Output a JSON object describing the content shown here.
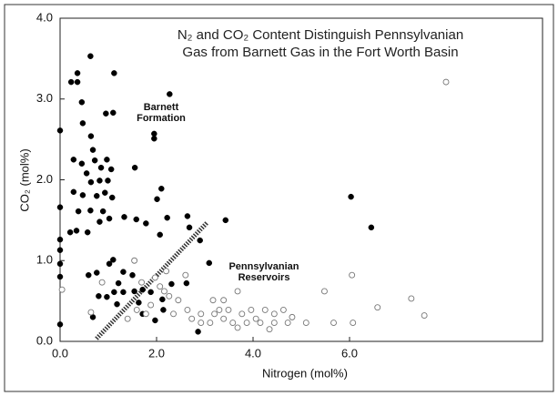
{
  "chart_data": {
    "type": "scatter",
    "title": [
      "N₂ and CO₂ Content Distinguish Pennsylvanian",
      "Gas from Barnett Gas in the Fort Worth Basin"
    ],
    "x_label": "Nitrogen (mol%)",
    "y_label": "CO₂ (mol%)",
    "annotations": [
      "Barnett",
      "Formation",
      "Pennsylvanian",
      "Reservoirs"
    ],
    "xlim": [
      0,
      10
    ],
    "ylim": [
      0,
      4
    ],
    "xticks": [
      {
        "value": 0,
        "label": "0.0"
      },
      {
        "value": 2,
        "label": "2.0"
      },
      {
        "value": 4,
        "label": "4.0"
      },
      {
        "value": 6,
        "label": "6.0"
      }
    ],
    "yticks": [
      {
        "value": 0,
        "label": "0.0"
      },
      {
        "value": 1,
        "label": "1.0"
      },
      {
        "value": 2,
        "label": "2.0"
      },
      {
        "value": 3,
        "label": "3.0"
      },
      {
        "value": 4,
        "label": "4.0"
      }
    ],
    "series": [
      {
        "color": "#000000",
        "marker": "filled",
        "x": [
          0,
          0,
          0,
          0,
          0,
          0,
          0,
          0.23,
          0.36,
          0.36,
          0.63,
          1.12,
          0.45,
          0.47,
          0.95,
          1.1,
          2.27,
          1.95,
          1.95,
          0.28,
          0.45,
          0.64,
          0.68,
          0.72,
          0.85,
          0.97,
          1.06,
          1.55,
          0.55,
          0.64,
          0.82,
          0.99,
          0.28,
          0.47,
          0.76,
          0.93,
          1.08,
          2.1,
          2.01,
          0.38,
          0.63,
          0.89,
          1.02,
          1.33,
          1.58,
          1.78,
          0.21,
          0.34,
          0.57,
          0.82,
          2.07,
          2.22,
          3.43,
          2.64,
          2.68,
          2.9,
          3.09,
          6.03,
          6.45,
          0.59,
          0.76,
          1.02,
          1.1,
          1.31,
          0.8,
          0.97,
          1.12,
          1.21,
          1.31,
          1.54,
          1.71,
          1.88,
          0.68,
          1.18,
          1.71,
          1.97,
          2.14,
          2.12,
          2.86,
          2.62,
          2.31,
          1.63,
          1.5
        ],
        "y": [
          2.61,
          1.66,
          1.26,
          1.13,
          0.96,
          0.8,
          0.21,
          3.21,
          3.21,
          3.32,
          3.53,
          3.32,
          2.96,
          2.7,
          2.82,
          2.83,
          3.06,
          2.57,
          2.51,
          2.25,
          2.2,
          2.54,
          2.37,
          2.24,
          2.15,
          2.25,
          2.13,
          2.15,
          2.08,
          1.97,
          1.99,
          1.99,
          1.85,
          1.81,
          1.8,
          1.84,
          1.78,
          1.89,
          1.76,
          1.61,
          1.62,
          1.61,
          1.52,
          1.54,
          1.51,
          1.46,
          1.35,
          1.37,
          1.35,
          1.48,
          1.32,
          1.53,
          1.5,
          1.55,
          1.41,
          1.25,
          0.97,
          1.79,
          1.41,
          0.82,
          0.85,
          0.96,
          1.01,
          0.86,
          0.56,
          0.55,
          0.61,
          0.72,
          0.61,
          0.62,
          0.64,
          0.61,
          0.3,
          0.46,
          0.34,
          0.26,
          0.39,
          0.52,
          0.12,
          0.72,
          0.71,
          0.48,
          0.82
        ]
      },
      {
        "color": "#777777",
        "marker": "open",
        "x": [
          8.0,
          0.04,
          1.54,
          0.64,
          0.87,
          6.05,
          5.48,
          6.58,
          7.28,
          7.55,
          6.07,
          5.67,
          5.1,
          3.68,
          4.63,
          4.81,
          4.44,
          4.06,
          3.96,
          3.77,
          3.58,
          3.39,
          3.2,
          3.11,
          2.92,
          2.73,
          2.64,
          2.45,
          2.35,
          2.26,
          2.07,
          1.88,
          1.78,
          1.59,
          1.4,
          2.6,
          2.2,
          1.97,
          3.3,
          3.49,
          4.25,
          4.44,
          4.15,
          4.72,
          3.17,
          3.39,
          3.87,
          3.68,
          4.34,
          2.92,
          1.69,
          2.16
        ],
        "y": [
          3.21,
          0.64,
          1.0,
          0.36,
          0.73,
          0.82,
          0.62,
          0.42,
          0.53,
          0.32,
          0.23,
          0.23,
          0.23,
          0.62,
          0.39,
          0.3,
          0.23,
          0.28,
          0.39,
          0.34,
          0.23,
          0.28,
          0.34,
          0.23,
          0.23,
          0.28,
          0.39,
          0.51,
          0.34,
          0.56,
          0.68,
          0.45,
          0.34,
          0.39,
          0.28,
          0.82,
          0.87,
          0.79,
          0.39,
          0.39,
          0.39,
          0.34,
          0.23,
          0.23,
          0.51,
          0.51,
          0.23,
          0.17,
          0.15,
          0.34,
          0.73,
          0.62
        ]
      }
    ]
  }
}
